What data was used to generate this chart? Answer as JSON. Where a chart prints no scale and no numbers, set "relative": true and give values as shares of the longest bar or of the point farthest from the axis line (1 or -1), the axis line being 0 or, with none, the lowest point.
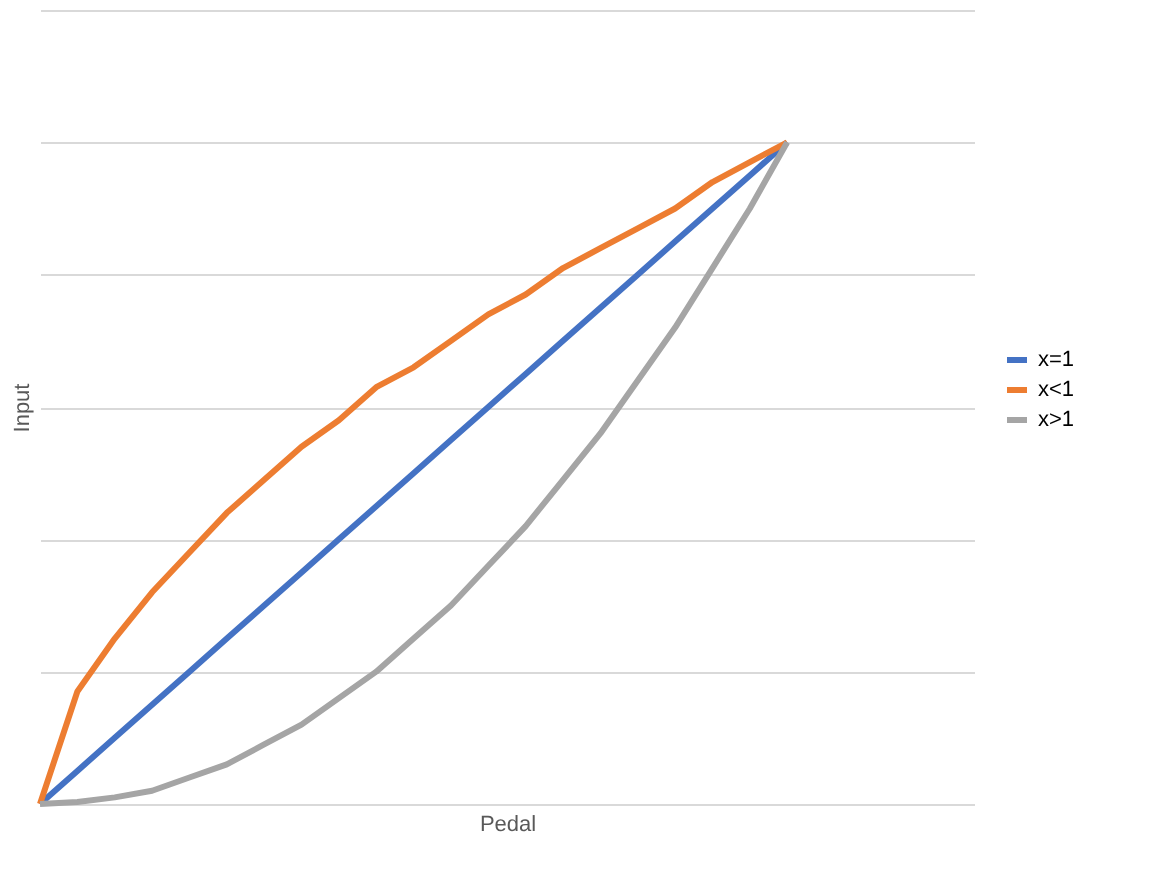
{
  "chart_data": {
    "type": "line",
    "relative": true,
    "xlabel": "Pedal",
    "ylabel": "Input",
    "grid": "y",
    "legend": "right",
    "tick_labels": false,
    "line_style": "solid",
    "marker": "none",
    "categories": [
      null,
      null,
      null,
      null,
      null,
      null,
      null,
      null,
      null,
      null,
      null,
      null,
      null,
      null,
      null,
      null,
      null,
      null,
      null,
      null,
      null,
      null,
      null,
      null,
      null,
      null
    ],
    "series": [
      {
        "name": "x=1",
        "color": "#4472c4",
        "values": [
          0,
          0.05,
          0.1,
          0.15,
          0.2,
          0.25,
          0.3,
          0.35,
          0.4,
          0.45,
          0.5,
          0.55,
          0.6,
          0.65,
          0.7,
          0.75,
          0.8,
          0.85,
          0.9,
          0.95,
          1,
          null,
          null,
          null,
          null,
          null
        ]
      },
      {
        "name": "x<1",
        "color": "#ed7d31",
        "values": [
          0,
          0.17,
          0.25,
          0.32,
          0.38,
          0.44,
          0.49,
          0.54,
          0.58,
          0.63,
          0.66,
          0.7,
          0.74,
          0.77,
          0.81,
          0.84,
          0.87,
          0.9,
          0.94,
          0.97,
          1,
          null,
          null,
          null,
          null,
          null
        ]
      },
      {
        "name": "x>1",
        "color": "#a5a5a5",
        "values": [
          0,
          0.003,
          0.01,
          0.02,
          0.04,
          0.06,
          0.09,
          0.12,
          0.16,
          0.2,
          0.25,
          0.3,
          0.36,
          0.42,
          0.49,
          0.56,
          0.64,
          0.72,
          0.81,
          0.9,
          1,
          null,
          null,
          null,
          null,
          null
        ]
      }
    ]
  }
}
